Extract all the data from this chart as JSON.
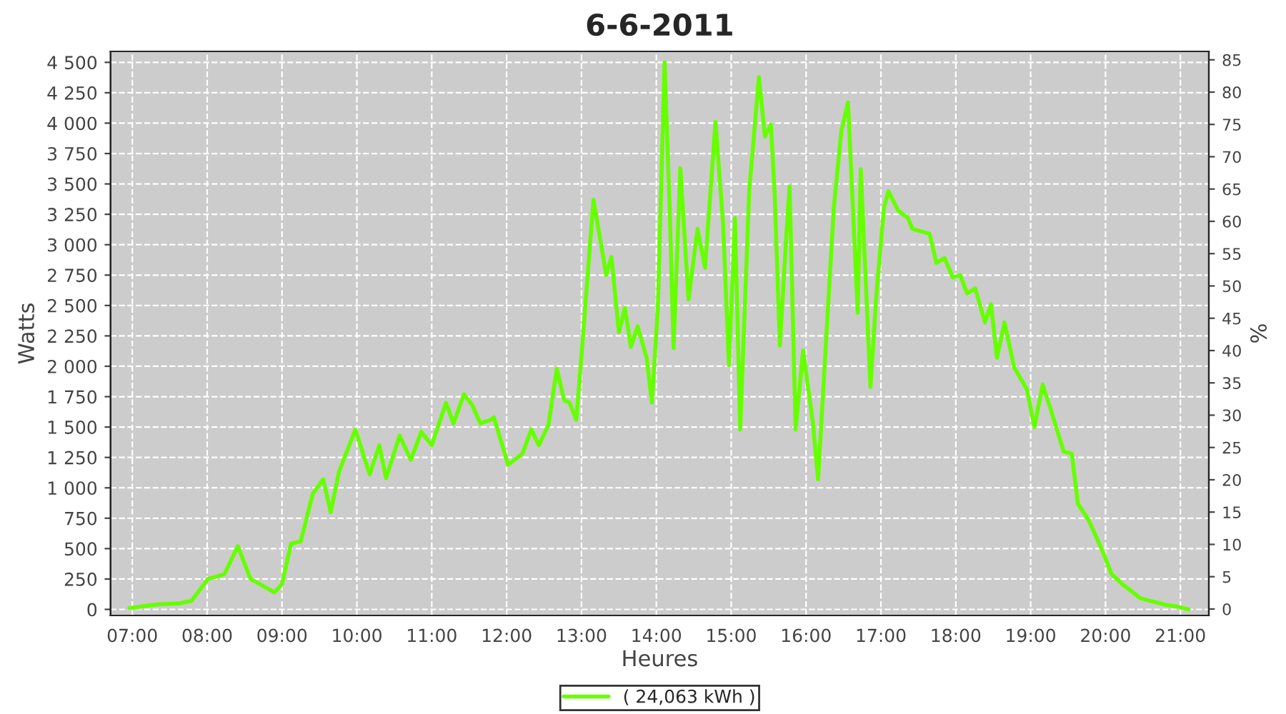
{
  "chart_data": {
    "type": "line",
    "title": "6-6-2011",
    "xlabel": "Heures",
    "ylabel": "Watts",
    "y2label": "%",
    "xlim": [
      6.71,
      21.38
    ],
    "xticks": [
      {
        "value": 7,
        "label": "07:00"
      },
      {
        "value": 8,
        "label": "08:00"
      },
      {
        "value": 9,
        "label": "09:00"
      },
      {
        "value": 10,
        "label": "10:00"
      },
      {
        "value": 11,
        "label": "11:00"
      },
      {
        "value": 12,
        "label": "12:00"
      },
      {
        "value": 13,
        "label": "13:00"
      },
      {
        "value": 14,
        "label": "14:00"
      },
      {
        "value": 15,
        "label": "15:00"
      },
      {
        "value": 16,
        "label": "16:00"
      },
      {
        "value": 17,
        "label": "17:00"
      },
      {
        "value": 18,
        "label": "18:00"
      },
      {
        "value": 19,
        "label": "19:00"
      },
      {
        "value": 20,
        "label": "20:00"
      },
      {
        "value": 21,
        "label": "21:00"
      }
    ],
    "ylim": [
      -50,
      4590
    ],
    "yticks": [
      0,
      250,
      500,
      750,
      {
        "value": 1000,
        "label": "1 000"
      },
      {
        "value": 1250,
        "label": "1 250"
      },
      {
        "value": 1500,
        "label": "1 500"
      },
      {
        "value": 1750,
        "label": "1 750"
      },
      {
        "value": 2000,
        "label": "2 000"
      },
      {
        "value": 2250,
        "label": "2 250"
      },
      {
        "value": 2500,
        "label": "2 500"
      },
      {
        "value": 2750,
        "label": "2 750"
      },
      {
        "value": 3000,
        "label": "3 000"
      },
      {
        "value": 3250,
        "label": "3 250"
      },
      {
        "value": 3500,
        "label": "3 500"
      },
      {
        "value": 3750,
        "label": "3 750"
      },
      {
        "value": 4000,
        "label": "4 000"
      },
      {
        "value": 4250,
        "label": "4 250"
      },
      {
        "value": 4500,
        "label": "4 500"
      }
    ],
    "y2lim": [
      -1,
      86.3
    ],
    "y2ticks": [
      0,
      5,
      10,
      15,
      20,
      25,
      30,
      35,
      40,
      45,
      50,
      55,
      60,
      65,
      70,
      75,
      80,
      85
    ],
    "grid": true,
    "legend": "bottom",
    "series": [
      {
        "name": "( 24,063 kWh )",
        "color": "#66ff00",
        "x": [
          6.96,
          7.31,
          7.63,
          7.79,
          8.01,
          8.23,
          8.41,
          8.58,
          8.9,
          9.0,
          9.12,
          9.25,
          9.41,
          9.55,
          9.65,
          9.76,
          9.98,
          10.17,
          10.3,
          10.39,
          10.57,
          10.72,
          10.86,
          11.0,
          11.19,
          11.29,
          11.43,
          11.54,
          11.65,
          11.79,
          11.83,
          12.02,
          12.21,
          12.33,
          12.43,
          12.56,
          12.67,
          12.77,
          12.84,
          12.93,
          13.0,
          13.16,
          13.33,
          13.4,
          13.5,
          13.58,
          13.66,
          13.75,
          13.87,
          13.94,
          14.02,
          14.11,
          14.18,
          14.23,
          14.32,
          14.43,
          14.55,
          14.65,
          14.79,
          14.89,
          14.97,
          15.05,
          15.12,
          15.24,
          15.37,
          15.45,
          15.53,
          15.58,
          15.65,
          15.74,
          15.78,
          15.86,
          15.96,
          16.09,
          16.16,
          16.27,
          16.37,
          16.47,
          16.56,
          16.69,
          16.73,
          16.86,
          16.94,
          17.04,
          17.1,
          17.23,
          17.36,
          17.42,
          17.65,
          17.74,
          17.85,
          17.96,
          18.06,
          18.15,
          18.26,
          18.39,
          18.47,
          18.55,
          18.65,
          18.78,
          18.95,
          19.05,
          19.16,
          19.27,
          19.44,
          19.55,
          19.63,
          19.77,
          19.96,
          20.08,
          20.22,
          20.47,
          20.79,
          20.98,
          21.11
        ],
        "values": [
          10,
          40,
          50,
          70,
          250,
          290,
          520,
          250,
          140,
          210,
          540,
          560,
          950,
          1070,
          800,
          1130,
          1480,
          1110,
          1350,
          1080,
          1430,
          1230,
          1460,
          1350,
          1700,
          1530,
          1770,
          1680,
          1530,
          1560,
          1580,
          1190,
          1280,
          1480,
          1350,
          1520,
          1980,
          1720,
          1700,
          1560,
          2090,
          3370,
          2750,
          2900,
          2280,
          2480,
          2160,
          2330,
          2070,
          1700,
          2480,
          4500,
          3260,
          2150,
          3630,
          2550,
          3130,
          2810,
          4010,
          3180,
          2010,
          3220,
          1480,
          3440,
          4380,
          3890,
          3990,
          3420,
          2170,
          3110,
          3480,
          1480,
          2130,
          1540,
          1070,
          2240,
          3300,
          3930,
          4170,
          2440,
          3620,
          1830,
          2600,
          3300,
          3440,
          3280,
          3220,
          3130,
          3090,
          2850,
          2890,
          2730,
          2750,
          2600,
          2640,
          2360,
          2510,
          2070,
          2360,
          1990,
          1810,
          1500,
          1850,
          1640,
          1300,
          1280,
          870,
          740,
          480,
          290,
          210,
          90,
          40,
          20,
          0
        ]
      }
    ]
  }
}
